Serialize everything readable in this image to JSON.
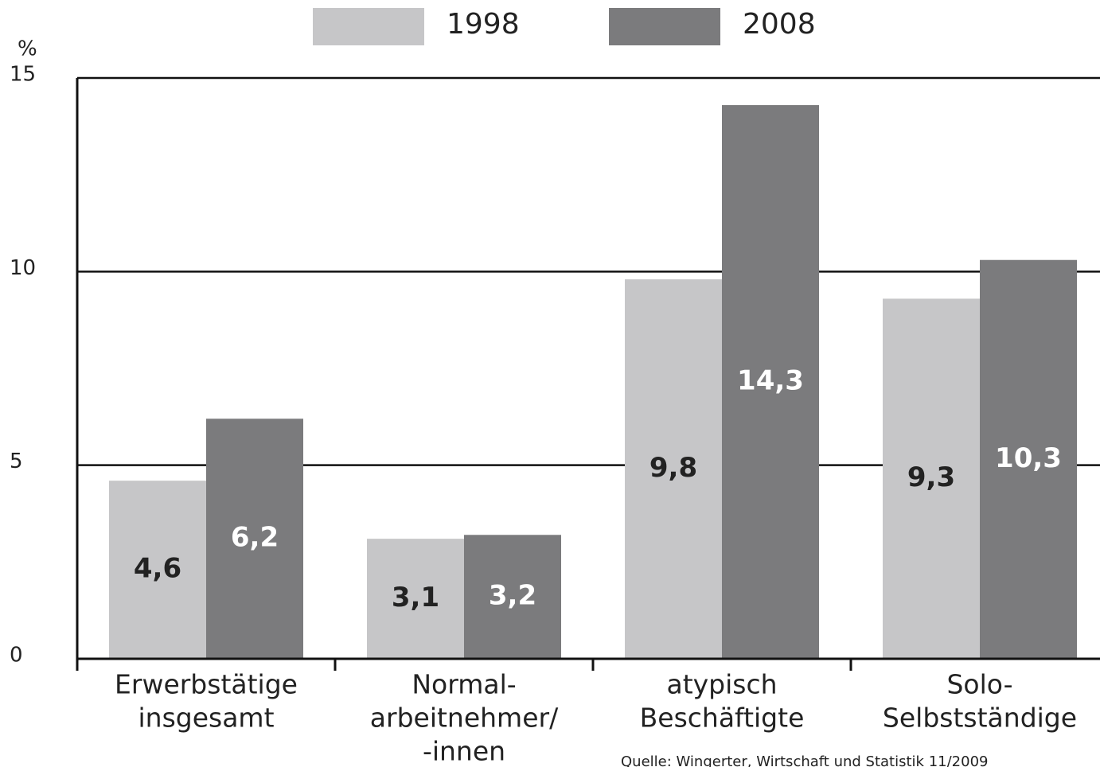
{
  "chart_data": {
    "type": "bar",
    "y_axis_label": "%",
    "categories": [
      [
        "Erwerbstätige",
        "insgesamt"
      ],
      [
        "Normal-",
        "arbeitnehmer/",
        "-innen"
      ],
      [
        "atypisch",
        "Beschäftigte"
      ],
      [
        "Solo-",
        "Selbstständige"
      ]
    ],
    "series": [
      {
        "name": "1998",
        "color": "#c6c6c8",
        "label_color": "#222222",
        "values": [
          4.6,
          3.1,
          9.8,
          9.3
        ],
        "value_labels": [
          "4,6",
          "3,1",
          "9,8",
          "9,3"
        ]
      },
      {
        "name": "2008",
        "color": "#7b7b7d",
        "label_color": "#ffffff",
        "values": [
          6.2,
          3.2,
          14.3,
          10.3
        ],
        "value_labels": [
          "6,2",
          "3,2",
          "14,3",
          "10,3"
        ]
      }
    ],
    "ylim": [
      0,
      15
    ],
    "yticks": [
      0,
      5,
      10,
      15
    ],
    "grid": true,
    "source": "Quelle: Wingerter, Wirtschaft und Statistik 11/2009"
  }
}
